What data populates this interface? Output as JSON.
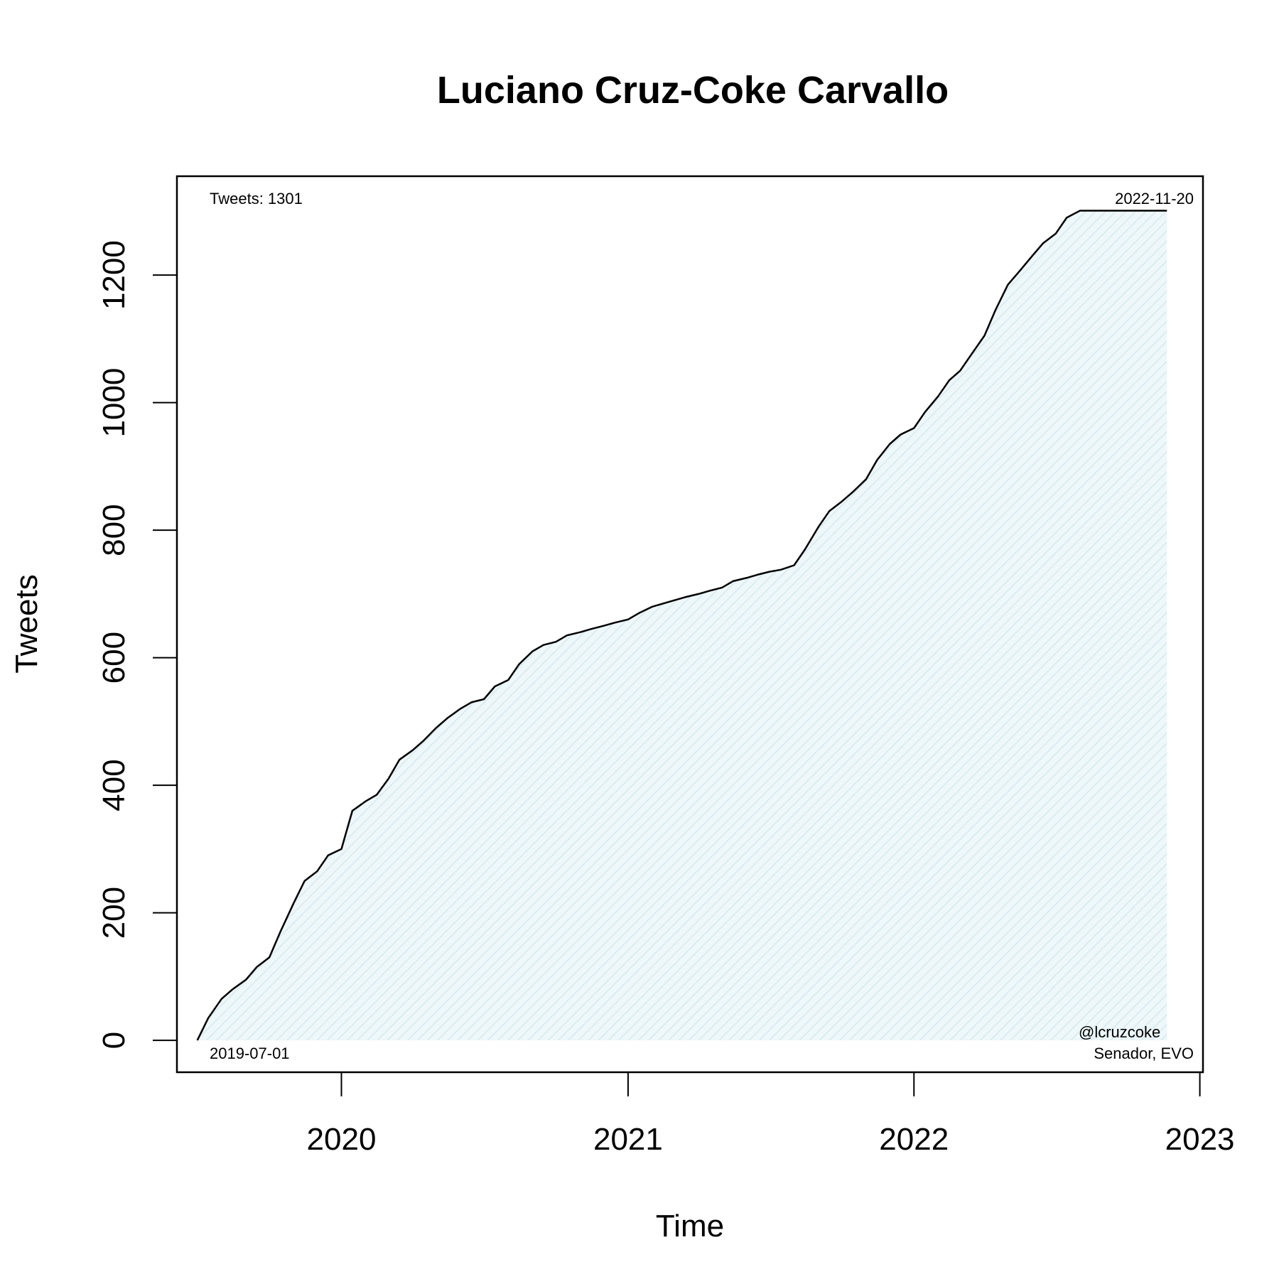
{
  "chart_data": {
    "type": "area",
    "title": "Luciano Cruz-Coke Carvallo",
    "xlabel": "Time",
    "ylabel": "Tweets",
    "x_ticks": [
      "2020",
      "2021",
      "2022",
      "2023"
    ],
    "y_ticks": [
      "0",
      "200",
      "400",
      "600",
      "800",
      "1000",
      "1200"
    ],
    "xlim": [
      "2019-06-05",
      "2023-01-05"
    ],
    "ylim": [
      -50,
      1355
    ],
    "grid": false,
    "legend": "none",
    "annotations": {
      "total": "Tweets: 1301",
      "start_date": "2019-07-01",
      "end_date": "2022-11-20",
      "handle": "@lcruzcoke",
      "role": "Senador, EVO"
    },
    "colors": {
      "line": "#000000",
      "fill": "#e3f1f4"
    },
    "series": [
      {
        "x": [
          "2019-07-01",
          "2019-07-15",
          "2019-08-01",
          "2019-08-15",
          "2019-09-01",
          "2019-09-15",
          "2019-10-01",
          "2019-10-15",
          "2019-11-01",
          "2019-11-15",
          "2019-12-01",
          "2019-12-15",
          "2020-01-01",
          "2020-01-15",
          "2020-02-01",
          "2020-02-15",
          "2020-03-01",
          "2020-03-15",
          "2020-04-01",
          "2020-04-15",
          "2020-05-01",
          "2020-05-15",
          "2020-06-01",
          "2020-06-15",
          "2020-07-01",
          "2020-07-15",
          "2020-08-01",
          "2020-08-15",
          "2020-09-01",
          "2020-09-15",
          "2020-10-01",
          "2020-10-15",
          "2020-11-01",
          "2020-11-15",
          "2020-12-01",
          "2020-12-15",
          "2021-01-01",
          "2021-01-15",
          "2021-02-01",
          "2021-02-15",
          "2021-03-01",
          "2021-03-15",
          "2021-04-01",
          "2021-04-15",
          "2021-05-01",
          "2021-05-15",
          "2021-06-01",
          "2021-06-15",
          "2021-07-01",
          "2021-07-15",
          "2021-08-01",
          "2021-08-15",
          "2021-09-01",
          "2021-09-15",
          "2021-10-01",
          "2021-10-15",
          "2021-11-01",
          "2021-11-15",
          "2021-12-01",
          "2021-12-15",
          "2022-01-01",
          "2022-01-15",
          "2022-02-01",
          "2022-02-15",
          "2022-03-01",
          "2022-03-15",
          "2022-04-01",
          "2022-04-15",
          "2022-05-01",
          "2022-05-15",
          "2022-06-01",
          "2022-06-15",
          "2022-07-01",
          "2022-07-15",
          "2022-08-01",
          "2022-08-15",
          "2022-09-01",
          "2022-09-15",
          "2022-10-01",
          "2022-10-15",
          "2022-11-01",
          "2022-11-20"
        ],
        "y": [
          0,
          35,
          65,
          80,
          95,
          115,
          130,
          170,
          215,
          250,
          265,
          290,
          300,
          360,
          375,
          385,
          410,
          440,
          455,
          470,
          490,
          505,
          520,
          530,
          535,
          555,
          565,
          590,
          610,
          620,
          625,
          635,
          640,
          645,
          650,
          655,
          660,
          670,
          680,
          685,
          690,
          695,
          700,
          705,
          710,
          720,
          725,
          730,
          735,
          738,
          745,
          770,
          805,
          830,
          845,
          860,
          880,
          910,
          935,
          950,
          960,
          985,
          1010,
          1035,
          1050,
          1075,
          1105,
          1145,
          1185,
          1205,
          1230,
          1250,
          1265,
          1290,
          1301,
          1301,
          1301,
          1301,
          1301,
          1301,
          1301,
          1301
        ]
      }
    ]
  }
}
